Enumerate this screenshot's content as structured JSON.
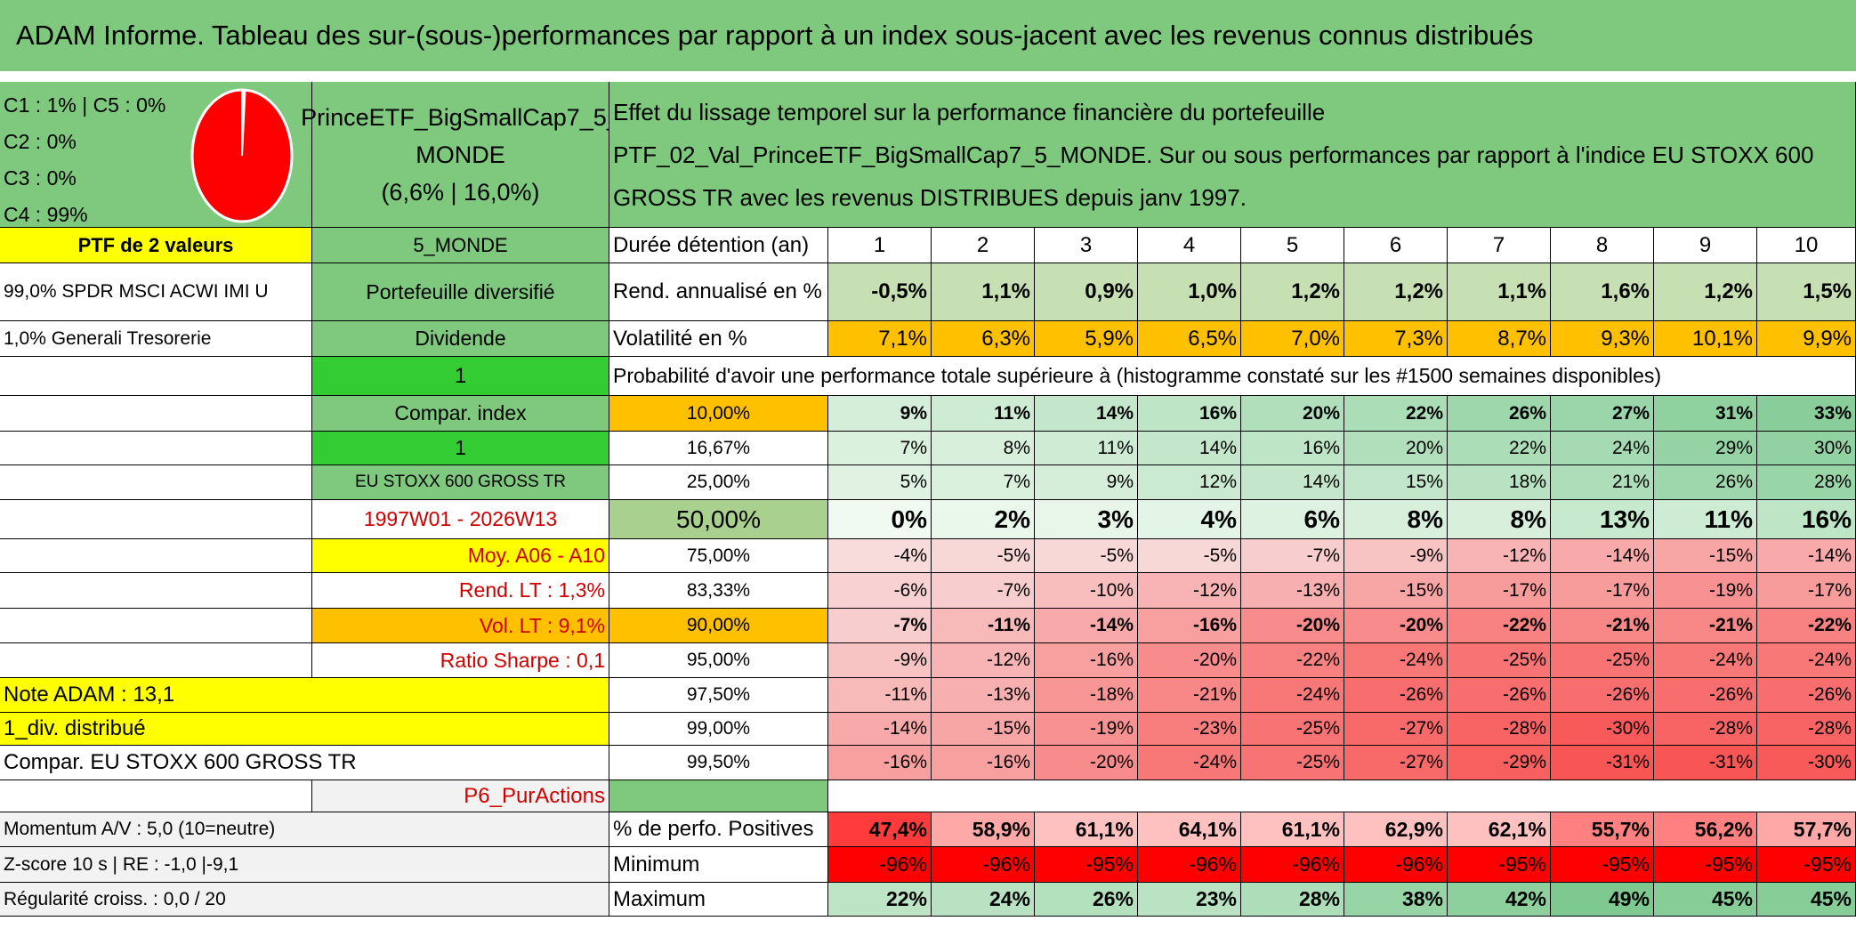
{
  "title": "ADAM Informe. Tableau des sur-(sous-)performances par rapport à un index sous-jacent avec les revenus connus distribués",
  "legend": {
    "lines": [
      "C1 : 1% | C5 : 0%",
      "C2 : 0%",
      "C3 : 0%",
      "C4 : 99%"
    ],
    "pie_slices": [
      {
        "label": "C1",
        "value": 1,
        "color": "#ffffff"
      },
      {
        "label": "C4",
        "value": 99,
        "color": "#ff0000"
      }
    ]
  },
  "fund": {
    "name_line1": "PrinceETF_BigSmallCap7_5_",
    "name_line2": "MONDE",
    "stats": "(6,6% | 16,0%)",
    "zone": "5_MONDE",
    "type": "Portefeuille diversifié",
    "dividend_label": "Dividende",
    "dividend_value": "1",
    "compar_label": "Compar. index",
    "compar_value": "1",
    "index_name": "EU STOXX 600 GROSS TR",
    "period": "1997W01 - 2026W13",
    "moy": "Moy. A06 - A10",
    "rend_lt": "Rend. LT : 1,3%",
    "vol_lt": "Vol. LT : 9,1%",
    "sharpe": "Ratio Sharpe : 0,1",
    "note": "Note ADAM : 13,1",
    "div_distrib": "1_div. distribué",
    "compar_full": "Compar. EU STOXX 600 GROSS TR",
    "category": "P6_PurActions",
    "momentum": "Momentum A/V : 5,0 (10=neutre)",
    "zscore": "Z-score 10 s | RE : -1,0 |-9,1",
    "regularite": "Régularité croiss. : 0,0 / 20"
  },
  "portfolio": {
    "header": "PTF de 2 valeurs",
    "holdings": [
      "99,0% SPDR MSCI ACWI IMI U",
      "1,0% Generali Tresorerie"
    ]
  },
  "description": "Effet du lissage temporel sur la performance financière du portefeuille PTF_02_Val_PrinceETF_BigSmallCap7_5_MONDE. Sur ou sous performances par rapport à l'indice EU STOXX 600 GROSS TR avec les revenus DISTRIBUES depuis janv 1997.",
  "table": {
    "duration_label": "Durée détention (an)",
    "years": [
      "1",
      "2",
      "3",
      "4",
      "5",
      "6",
      "7",
      "8",
      "9",
      "10"
    ],
    "rend_label": "Rend. annualisé en %",
    "rend": [
      "-0,5%",
      "1,1%",
      "0,9%",
      "1,0%",
      "1,2%",
      "1,2%",
      "1,1%",
      "1,6%",
      "1,2%",
      "1,5%"
    ],
    "vol_label": "Volatilité en %",
    "vol": [
      "7,1%",
      "6,3%",
      "5,9%",
      "6,5%",
      "7,0%",
      "7,3%",
      "8,7%",
      "9,3%",
      "10,1%",
      "9,9%"
    ],
    "prob_caption": "Probabilité d'avoir une performance totale supérieure à (histogramme constaté sur les #1500 semaines disponibles)",
    "quantiles": [
      {
        "q": "10,00%",
        "values": [
          "9%",
          "11%",
          "14%",
          "16%",
          "20%",
          "22%",
          "26%",
          "27%",
          "31%",
          "33%"
        ]
      },
      {
        "q": "16,67%",
        "values": [
          "7%",
          "8%",
          "11%",
          "14%",
          "16%",
          "20%",
          "22%",
          "24%",
          "29%",
          "30%"
        ]
      },
      {
        "q": "25,00%",
        "values": [
          "5%",
          "7%",
          "9%",
          "12%",
          "14%",
          "15%",
          "18%",
          "21%",
          "26%",
          "28%"
        ]
      },
      {
        "q": "50,00%",
        "values": [
          "0%",
          "2%",
          "3%",
          "4%",
          "6%",
          "8%",
          "8%",
          "13%",
          "11%",
          "16%"
        ]
      },
      {
        "q": "75,00%",
        "values": [
          "-4%",
          "-5%",
          "-5%",
          "-5%",
          "-7%",
          "-9%",
          "-12%",
          "-14%",
          "-15%",
          "-14%"
        ]
      },
      {
        "q": "83,33%",
        "values": [
          "-6%",
          "-7%",
          "-10%",
          "-12%",
          "-13%",
          "-15%",
          "-17%",
          "-17%",
          "-19%",
          "-17%"
        ]
      },
      {
        "q": "90,00%",
        "values": [
          "-7%",
          "-11%",
          "-14%",
          "-16%",
          "-20%",
          "-20%",
          "-22%",
          "-21%",
          "-21%",
          "-22%"
        ]
      },
      {
        "q": "95,00%",
        "values": [
          "-9%",
          "-12%",
          "-16%",
          "-20%",
          "-22%",
          "-24%",
          "-25%",
          "-25%",
          "-24%",
          "-24%"
        ]
      },
      {
        "q": "97,50%",
        "values": [
          "-11%",
          "-13%",
          "-18%",
          "-21%",
          "-24%",
          "-26%",
          "-26%",
          "-26%",
          "-26%",
          "-26%"
        ]
      },
      {
        "q": "99,00%",
        "values": [
          "-14%",
          "-15%",
          "-19%",
          "-23%",
          "-25%",
          "-27%",
          "-28%",
          "-30%",
          "-28%",
          "-28%"
        ]
      },
      {
        "q": "99,50%",
        "values": [
          "-16%",
          "-16%",
          "-20%",
          "-24%",
          "-25%",
          "-27%",
          "-29%",
          "-31%",
          "-31%",
          "-30%"
        ]
      }
    ],
    "pos_label": "% de perfo. Positives",
    "pos": [
      "47,4%",
      "58,9%",
      "61,1%",
      "64,1%",
      "61,1%",
      "62,9%",
      "62,1%",
      "55,7%",
      "56,2%",
      "57,7%"
    ],
    "min_label": "Minimum",
    "min": [
      "-96%",
      "-96%",
      "-95%",
      "-96%",
      "-96%",
      "-96%",
      "-95%",
      "-95%",
      "-95%",
      "-95%"
    ],
    "max_label": "Maximum",
    "max": [
      "22%",
      "24%",
      "26%",
      "23%",
      "28%",
      "38%",
      "42%",
      "49%",
      "45%",
      "45%"
    ]
  }
}
